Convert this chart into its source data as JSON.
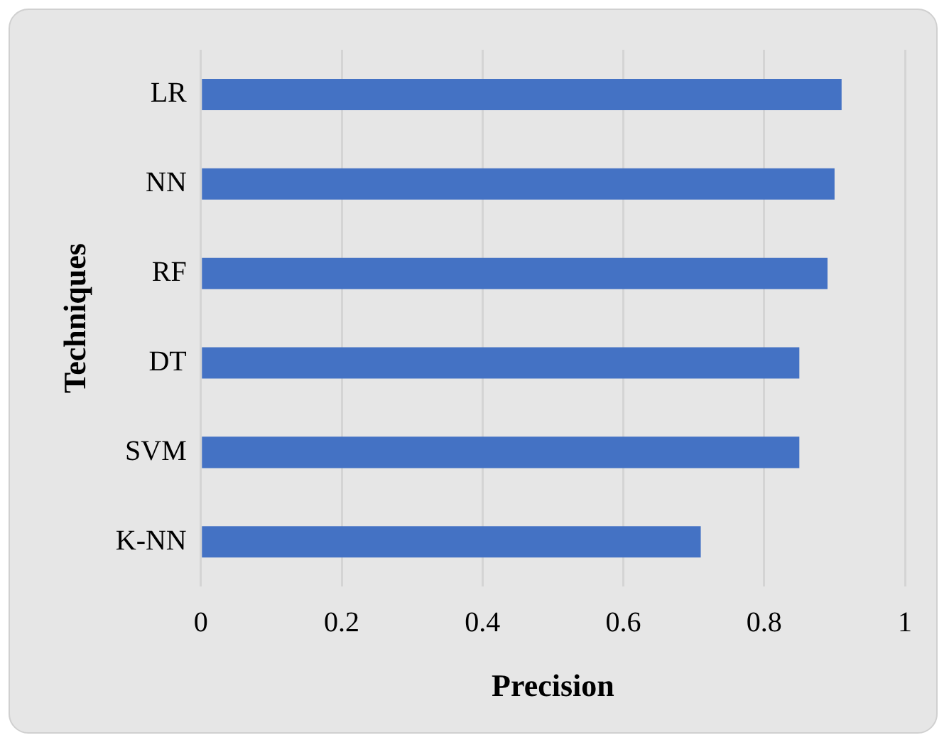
{
  "chart_data": {
    "type": "bar",
    "orientation": "horizontal",
    "xlabel": "Precision",
    "ylabel": "Techniques",
    "categories": [
      "LR",
      "NN",
      "RF",
      "DT",
      "SVM",
      "K-NN"
    ],
    "values": [
      0.91,
      0.9,
      0.89,
      0.85,
      0.85,
      0.71
    ],
    "color": "#4472c4",
    "xlim": [
      0,
      1
    ],
    "xticks": [
      0,
      0.2,
      0.4,
      0.6,
      0.8,
      1
    ],
    "grid": "x",
    "legend": false
  }
}
